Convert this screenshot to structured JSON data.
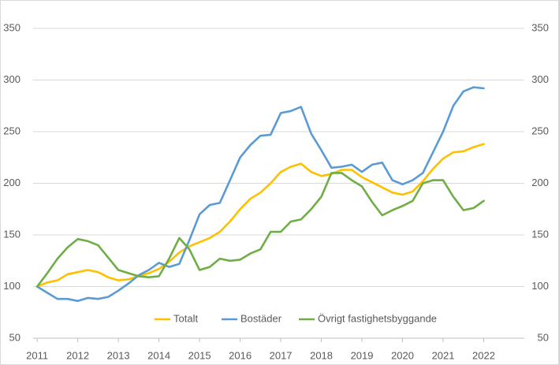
{
  "chart_data": {
    "type": "line",
    "x": [
      2011,
      2011.25,
      2011.5,
      2011.75,
      2012,
      2012.25,
      2012.5,
      2012.75,
      2013,
      2013.25,
      2013.5,
      2013.75,
      2014,
      2014.25,
      2014.5,
      2014.75,
      2015,
      2015.25,
      2015.5,
      2015.75,
      2016,
      2016.25,
      2016.5,
      2016.75,
      2017,
      2017.25,
      2017.5,
      2017.75,
      2018,
      2018.25,
      2018.5,
      2018.75,
      2019,
      2019.25,
      2019.5,
      2019.75,
      2020,
      2020.25,
      2020.5,
      2020.75,
      2021,
      2021.25,
      2021.5,
      2021.75,
      2022
    ],
    "series": [
      {
        "name": "Totalt",
        "color": "#FFC000",
        "values": [
          100,
          104,
          106,
          112,
          114,
          116,
          114,
          109,
          106,
          107,
          110,
          113,
          117,
          124,
          133,
          139,
          143,
          147,
          153,
          163,
          175,
          185,
          191,
          200,
          211,
          216,
          219,
          211,
          207,
          209,
          213,
          213,
          206,
          201,
          196,
          191,
          189,
          192,
          202,
          214,
          224,
          230,
          231,
          235,
          238
        ]
      },
      {
        "name": "Bostäder",
        "color": "#5B9BD5",
        "values": [
          100,
          94,
          88,
          88,
          86,
          89,
          88,
          90,
          96,
          103,
          111,
          116,
          123,
          119,
          122,
          145,
          170,
          179,
          181,
          203,
          225,
          237,
          246,
          247,
          268,
          270,
          274,
          248,
          232,
          215,
          216,
          218,
          211,
          218,
          220,
          203,
          199,
          203,
          210,
          230,
          250,
          275,
          289,
          293,
          292
        ]
      },
      {
        "name": "Övrigt fastighetsbyggande",
        "color": "#70AD47",
        "values": [
          100,
          113,
          127,
          138,
          146,
          144,
          140,
          128,
          116,
          113,
          110,
          109,
          110,
          127,
          147,
          136,
          116,
          119,
          127,
          125,
          126,
          132,
          136,
          153,
          153,
          163,
          165,
          175,
          187,
          210,
          210,
          203,
          197,
          182,
          169,
          174,
          178,
          183,
          200,
          203,
          203,
          187,
          174,
          176,
          183
        ]
      }
    ],
    "xlim": [
      2010.9,
      2023
    ],
    "xticks": [
      2011,
      2012,
      2013,
      2014,
      2015,
      2016,
      2017,
      2018,
      2019,
      2020,
      2021,
      2022
    ],
    "ylim": [
      50,
      350
    ],
    "yticks": [
      50,
      100,
      150,
      200,
      250,
      300,
      350
    ],
    "y2lim": [
      50,
      350
    ],
    "y2ticks": [
      50,
      100,
      150,
      200,
      250,
      300,
      350
    ],
    "grid": true,
    "legend": "bottom"
  }
}
